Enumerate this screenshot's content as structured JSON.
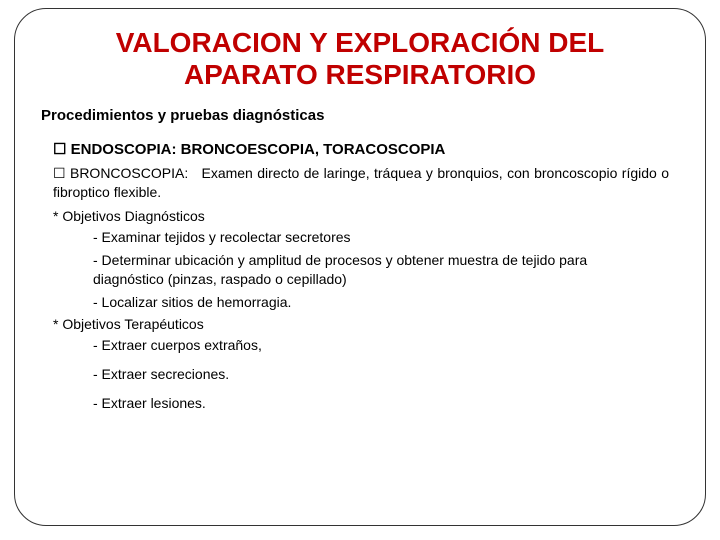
{
  "colors": {
    "title": "#c00000",
    "text": "#000000",
    "border": "#333333",
    "background": "#ffffff"
  },
  "title_line1": "VALORACION Y EXPLORACIÓN DEL",
  "title_line2": "APARATO RESPIRATORIO",
  "subtitle": "Procedimientos y pruebas diagnósticas",
  "section_heading_bullet": "☐",
  "section_heading": "ENDOSCOPIA: BRONCOESCOPIA, TORACOSCOPIA",
  "definition_bullet": "☐",
  "definition_label": "BRONCOSCOPIA:",
  "definition_text": "Examen directo de laringe, tráquea y bronquios, con broncoscopio rígido o fibroptico flexible.",
  "diagnostic_heading": "* Objetivos Diagnósticos",
  "diagnostic_items": [
    "- Examinar tejidos y recolectar secretores",
    "- Determinar ubicación y amplitud de procesos y obtener muestra de tejido para diagnóstico (pinzas, raspado o cepillado)",
    "- Localizar sitios de hemorragia."
  ],
  "therapeutic_heading": "* Objetivos Terapéuticos",
  "therapeutic_items": [
    "- Extraer cuerpos extraños,",
    "- Extraer secreciones.",
    "- Extraer lesiones."
  ]
}
